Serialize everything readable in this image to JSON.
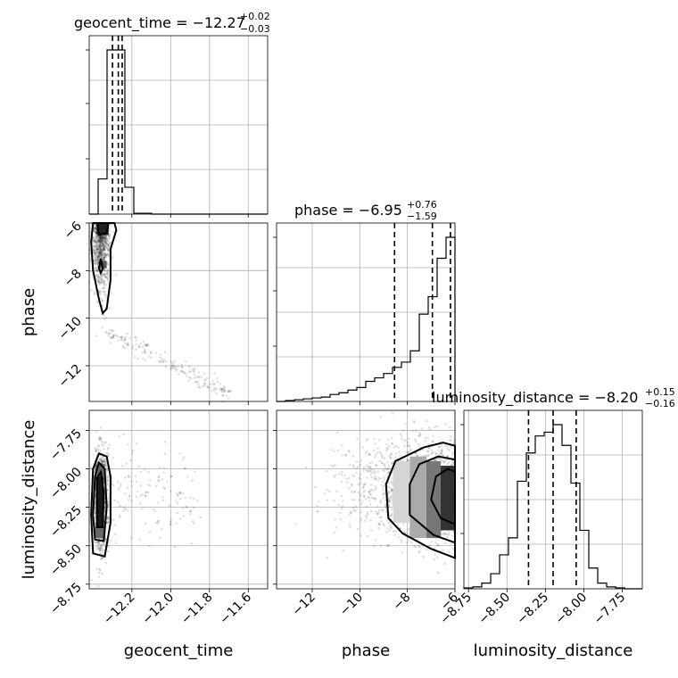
{
  "chart_data": {
    "type": "corner",
    "parameters": [
      "geocent_time",
      "phase",
      "luminosity_distance"
    ],
    "titles": [
      {
        "param": "geocent_time",
        "text": "geocent_time = −12.27",
        "plus": "+0.02",
        "minus": "−0.03"
      },
      {
        "param": "phase",
        "text": "phase = −6.95",
        "plus": "+0.76",
        "minus": "−1.59"
      },
      {
        "param": "luminosity_distance",
        "text": "luminosity_distance = −8.20",
        "plus": "+0.15",
        "minus": "−0.16"
      }
    ],
    "axis_labels": {
      "geocent_time": "geocent_time",
      "phase": "phase",
      "luminosity_distance": "luminosity_distance"
    },
    "ranges": {
      "geocent_time": [
        -12.42,
        -11.5
      ],
      "phase": [
        -13.5,
        -6.0
      ],
      "luminosity_distance": [
        -8.78,
        -7.62
      ]
    },
    "ticks": {
      "geocent_time": [
        -12.2,
        -12.0,
        -11.8,
        -11.6
      ],
      "phase": [
        -12,
        -10,
        -8,
        -6
      ],
      "luminosity_distance": [
        -8.75,
        -8.5,
        -8.25,
        -8.0,
        -7.75
      ]
    },
    "tick_labels": {
      "geocent_time": [
        "−12.2",
        "−12.0",
        "−11.8",
        "−11.6"
      ],
      "phase": [
        "−12",
        "−10",
        "−8",
        "−6"
      ],
      "luminosity_distance": [
        "−8.75",
        "−8.50",
        "−8.25",
        "−8.00",
        "−7.75"
      ]
    },
    "quantiles": {
      "geocent_time": [
        -12.3,
        -12.27,
        -12.25
      ],
      "phase": [
        -8.54,
        -6.95,
        -6.19
      ],
      "luminosity_distance": [
        -8.36,
        -8.2,
        -8.05
      ]
    },
    "marginals": {
      "geocent_time": {
        "edges_start": -12.42,
        "bin_width": 0.046,
        "counts": [
          0,
          0.21,
          0.98,
          0.98,
          0.16,
          0.005,
          0.005,
          0,
          0,
          0,
          0,
          0,
          0,
          0,
          0,
          0,
          0,
          0,
          0,
          0
        ]
      },
      "phase": {
        "edges_start": -13.5,
        "bin_width": 0.375,
        "counts": [
          0,
          0.005,
          0.01,
          0.015,
          0.02,
          0.025,
          0.04,
          0.05,
          0.065,
          0.08,
          0.115,
          0.135,
          0.16,
          0.195,
          0.225,
          0.29,
          0.5,
          0.6,
          0.82,
          0.94
        ]
      },
      "luminosity_distance": {
        "edges_start": -8.78,
        "bin_width": 0.058,
        "counts": [
          0.005,
          0.01,
          0.03,
          0.08,
          0.18,
          0.27,
          0.57,
          0.72,
          0.81,
          0.83,
          0.87,
          0.76,
          0.56,
          0.31,
          0.11,
          0.03,
          0.01,
          0.005,
          0,
          0
        ]
      }
    },
    "grid": true,
    "contour_levels": 3
  }
}
